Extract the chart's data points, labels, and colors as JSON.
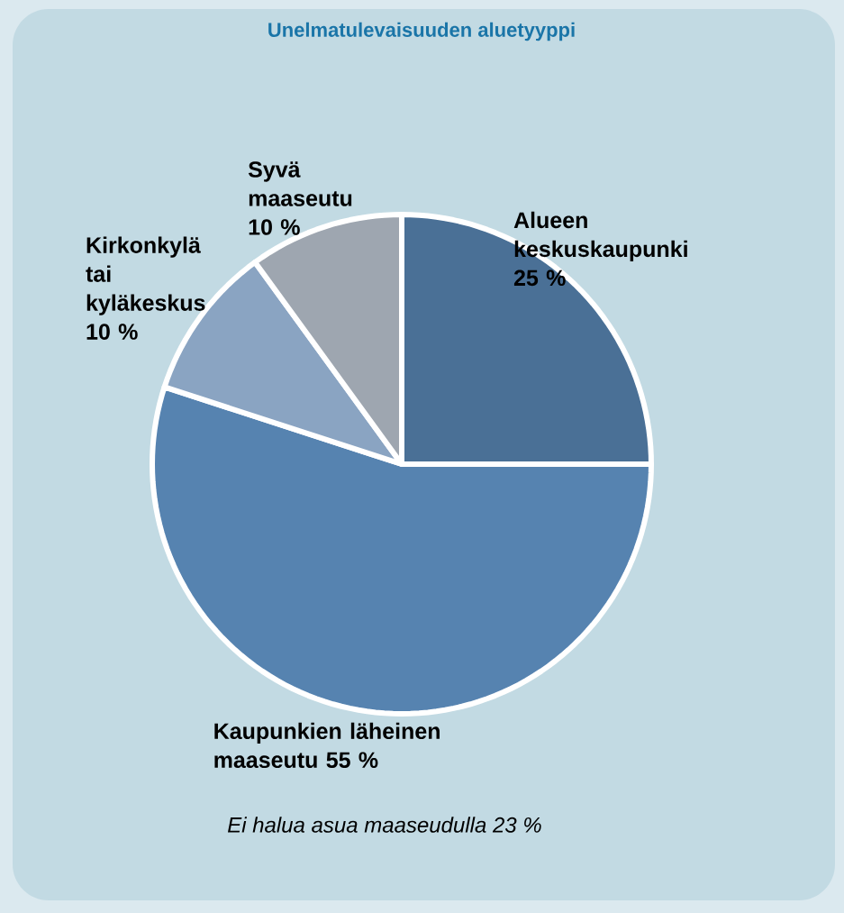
{
  "chart_data": {
    "type": "pie",
    "title": "Unelmatulevaisuuden aluetyyppi",
    "categories": [
      "Alueen keskuskaupunki",
      "Kaupunkien läheinen maaseutu",
      "Kirkonkylä tai kyläkeskus",
      "Syvä maaseutu"
    ],
    "values": [
      25,
      55,
      10,
      10
    ],
    "colors": [
      "#4a7096",
      "#5683b0",
      "#8aa4c2",
      "#9ea6b0"
    ],
    "value_labels": [
      "25 %",
      "55 %",
      "10 %",
      "10 %"
    ],
    "annotations": [
      "Ei halua asua maaseudulla 23 %"
    ]
  }
}
